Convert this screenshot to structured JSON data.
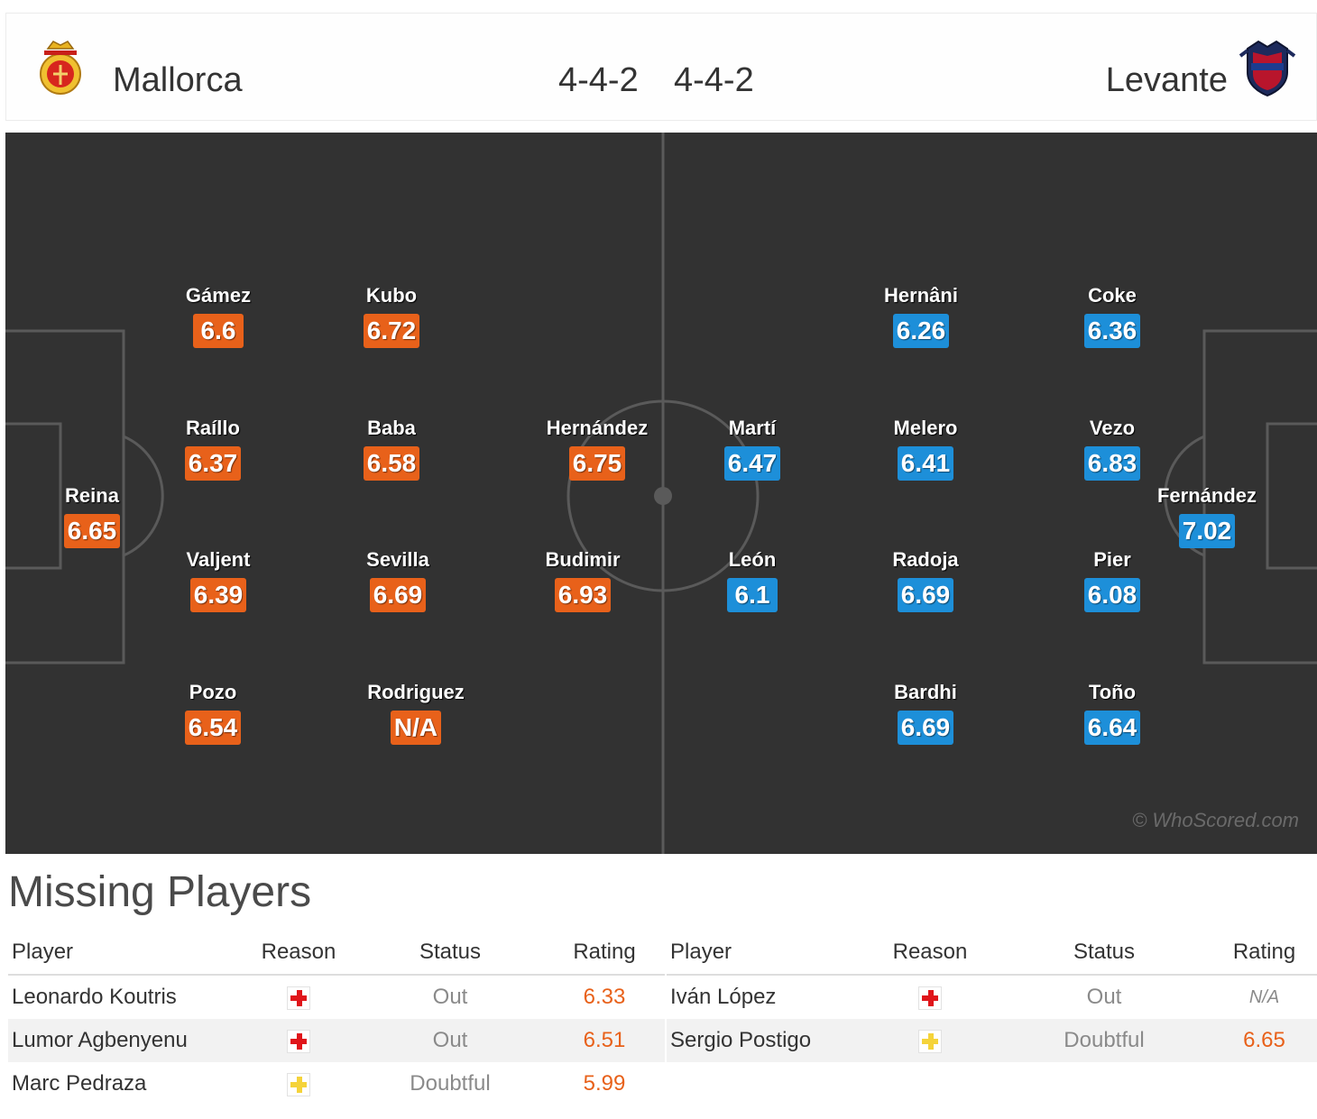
{
  "header": {
    "home_team": "Mallorca",
    "away_team": "Levante",
    "home_formation": "4-4-2",
    "away_formation": "4-4-2",
    "home_crest_icon": "mallorca-crest-icon",
    "away_crest_icon": "levante-crest-icon"
  },
  "pitch": {
    "home": [
      {
        "name": "Reina",
        "rating": "6.65"
      },
      {
        "name": "Gámez",
        "rating": "6.6"
      },
      {
        "name": "Raíllo",
        "rating": "6.37"
      },
      {
        "name": "Valjent",
        "rating": "6.39"
      },
      {
        "name": "Pozo",
        "rating": "6.54"
      },
      {
        "name": "Kubo",
        "rating": "6.72"
      },
      {
        "name": "Baba",
        "rating": "6.58"
      },
      {
        "name": "Sevilla",
        "rating": "6.69"
      },
      {
        "name": "Rodriguez",
        "rating": "N/A"
      },
      {
        "name": "Hernández",
        "rating": "6.75"
      },
      {
        "name": "Budimir",
        "rating": "6.93"
      }
    ],
    "away": [
      {
        "name": "Fernández",
        "rating": "7.02"
      },
      {
        "name": "Coke",
        "rating": "6.36"
      },
      {
        "name": "Vezo",
        "rating": "6.83"
      },
      {
        "name": "Pier",
        "rating": "6.08"
      },
      {
        "name": "Toño",
        "rating": "6.64"
      },
      {
        "name": "Hernâni",
        "rating": "6.26"
      },
      {
        "name": "Melero",
        "rating": "6.41"
      },
      {
        "name": "Radoja",
        "rating": "6.69"
      },
      {
        "name": "Bardhi",
        "rating": "6.69"
      },
      {
        "name": "Martí",
        "rating": "6.47"
      },
      {
        "name": "León",
        "rating": "6.1"
      }
    ],
    "watermark": "© WhoScored.com",
    "colors": {
      "home_rating": "#e8611a",
      "away_rating": "#1d8fd9",
      "pitch": "#323232"
    }
  },
  "missing": {
    "title": "Missing Players",
    "headers": {
      "player": "Player",
      "reason": "Reason",
      "status": "Status",
      "rating": "Rating"
    },
    "home": [
      {
        "player": "Leonardo Koutris",
        "reason_icon": "injury-icon",
        "status": "Out",
        "rating": "6.33"
      },
      {
        "player": "Lumor Agbenyenu",
        "reason_icon": "injury-icon",
        "status": "Out",
        "rating": "6.51"
      },
      {
        "player": "Marc Pedraza",
        "reason_icon": "doubt-icon",
        "status": "Doubtful",
        "rating": "5.99"
      }
    ],
    "away": [
      {
        "player": "Iván López",
        "reason_icon": "injury-icon",
        "status": "Out",
        "rating": "N/A"
      },
      {
        "player": "Sergio Postigo",
        "reason_icon": "doubt-icon",
        "status": "Doubtful",
        "rating": "6.65"
      }
    ]
  }
}
